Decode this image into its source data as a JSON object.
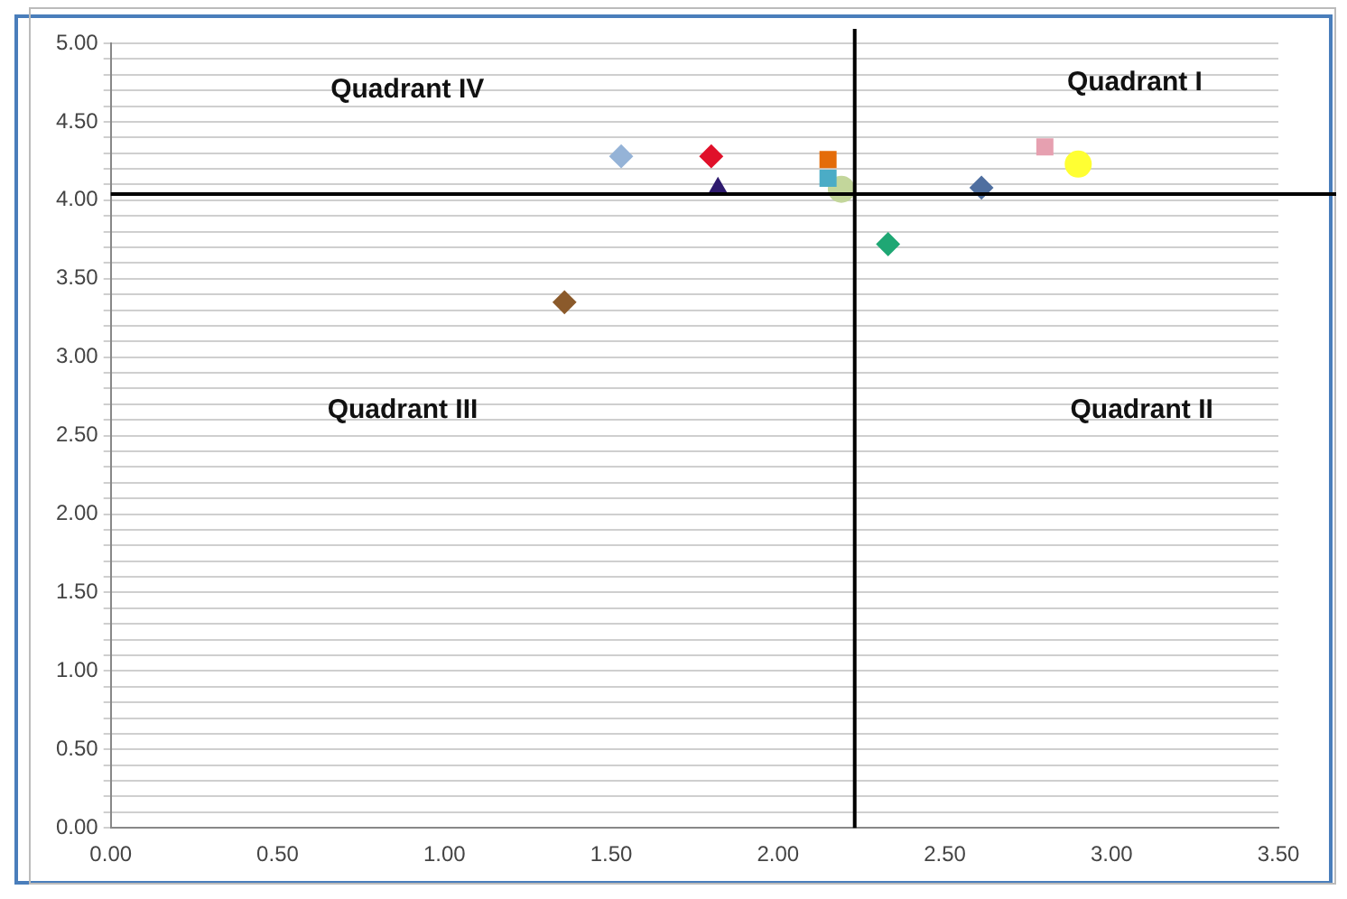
{
  "chart_data": {
    "type": "scatter",
    "xlim": [
      0,
      3.5
    ],
    "xticks": [
      {
        "value": 0,
        "label": "0.00"
      },
      {
        "value": 0.5,
        "label": "0.50"
      },
      {
        "value": 1,
        "label": "1.00"
      },
      {
        "value": 1.5,
        "label": "1.50"
      },
      {
        "value": 2,
        "label": "2.00"
      },
      {
        "value": 2.5,
        "label": "2.50"
      },
      {
        "value": 3,
        "label": "3.00"
      },
      {
        "value": 3.5,
        "label": "3.50"
      }
    ],
    "ylim": [
      0,
      5
    ],
    "yticks": [
      {
        "value": 0,
        "label": "0.00"
      },
      {
        "value": 0.1,
        "label": null
      },
      {
        "value": 0.2,
        "label": null
      },
      {
        "value": 0.3,
        "label": null
      },
      {
        "value": 0.4,
        "label": null
      },
      {
        "value": 0.5,
        "label": "0.50"
      },
      {
        "value": 0.6,
        "label": null
      },
      {
        "value": 0.7,
        "label": null
      },
      {
        "value": 0.8,
        "label": null
      },
      {
        "value": 0.9,
        "label": null
      },
      {
        "value": 1,
        "label": "1.00"
      },
      {
        "value": 1.1,
        "label": null
      },
      {
        "value": 1.2,
        "label": null
      },
      {
        "value": 1.3,
        "label": null
      },
      {
        "value": 1.4,
        "label": null
      },
      {
        "value": 1.5,
        "label": "1.50"
      },
      {
        "value": 1.6,
        "label": null
      },
      {
        "value": 1.7,
        "label": null
      },
      {
        "value": 1.8,
        "label": null
      },
      {
        "value": 1.9,
        "label": null
      },
      {
        "value": 2,
        "label": "2.00"
      },
      {
        "value": 2.1,
        "label": null
      },
      {
        "value": 2.2,
        "label": null
      },
      {
        "value": 2.3,
        "label": null
      },
      {
        "value": 2.4,
        "label": null
      },
      {
        "value": 2.5,
        "label": "2.50"
      },
      {
        "value": 2.6,
        "label": null
      },
      {
        "value": 2.7,
        "label": null
      },
      {
        "value": 2.8,
        "label": null
      },
      {
        "value": 2.9,
        "label": null
      },
      {
        "value": 3,
        "label": "3.00"
      },
      {
        "value": 3.1,
        "label": null
      },
      {
        "value": 3.2,
        "label": null
      },
      {
        "value": 3.3,
        "label": null
      },
      {
        "value": 3.4,
        "label": null
      },
      {
        "value": 3.5,
        "label": "3.50"
      },
      {
        "value": 3.6,
        "label": null
      },
      {
        "value": 3.7,
        "label": null
      },
      {
        "value": 3.8,
        "label": null
      },
      {
        "value": 3.9,
        "label": null
      },
      {
        "value": 4,
        "label": "4.00"
      },
      {
        "value": 4.1,
        "label": null
      },
      {
        "value": 4.2,
        "label": null
      },
      {
        "value": 4.3,
        "label": null
      },
      {
        "value": 4.4,
        "label": null
      },
      {
        "value": 4.5,
        "label": "4.50"
      },
      {
        "value": 4.6,
        "label": null
      },
      {
        "value": 4.7,
        "label": null
      },
      {
        "value": 4.8,
        "label": null
      },
      {
        "value": 4.9,
        "label": null
      },
      {
        "value": 5,
        "label": "5.00"
      }
    ],
    "grid": "y",
    "legend": false,
    "series": [
      {
        "color": "#95b3d7",
        "marker": "diamond",
        "x": [
          1.53
        ],
        "values": [
          4.28
        ]
      },
      {
        "color": "#e0102a",
        "marker": "diamond",
        "x": [
          1.8
        ],
        "values": [
          4.28
        ]
      },
      {
        "color": "#2e1a6e",
        "marker": "triangle",
        "x": [
          1.82
        ],
        "values": [
          4.07
        ]
      },
      {
        "color": "#e46c0a",
        "marker": "square",
        "x": [
          2.15
        ],
        "values": [
          4.26
        ]
      },
      {
        "color": "#4bacc6",
        "marker": "square",
        "x": [
          2.15
        ],
        "values": [
          4.14
        ]
      },
      {
        "color": "#c3d69b",
        "marker": "circle",
        "x": [
          2.19
        ],
        "values": [
          4.07
        ]
      },
      {
        "color": "#8b5a2b",
        "marker": "diamond",
        "x": [
          1.36
        ],
        "values": [
          3.35
        ]
      },
      {
        "color": "#1fa774",
        "marker": "diamond",
        "x": [
          2.33
        ],
        "values": [
          3.72
        ]
      },
      {
        "color": "#4f6fa0",
        "marker": "diamond",
        "x": [
          2.61
        ],
        "values": [
          4.08
        ]
      },
      {
        "color": "#e6a0b0",
        "marker": "square",
        "x": [
          2.8
        ],
        "values": [
          4.34
        ]
      },
      {
        "color": "#ffff33",
        "marker": "circle",
        "x": [
          2.9
        ],
        "values": [
          4.23
        ]
      }
    ],
    "ref_lines": [
      {
        "axis": "x",
        "value": 2.23,
        "color": "#000000"
      },
      {
        "axis": "y",
        "value": 4.04,
        "color": "#000000"
      }
    ],
    "annotations": [
      "Quadrant IV",
      "Quadrant I",
      "Quadrant III",
      "Quadrant II"
    ]
  }
}
